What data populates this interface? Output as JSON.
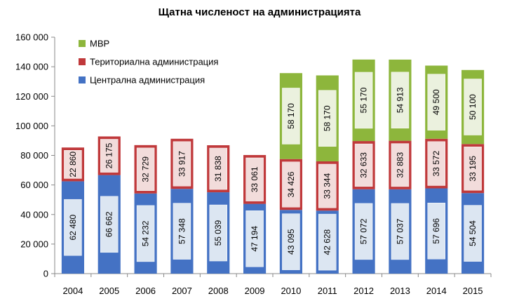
{
  "chart_data": {
    "type": "bar",
    "stacked": true,
    "title": "Щатна численост на администрацията",
    "xlabel": "",
    "ylabel": "",
    "categories": [
      "2004",
      "2005",
      "2006",
      "2007",
      "2008",
      "2009",
      "2010",
      "2011",
      "2012",
      "2013",
      "2014",
      "2015"
    ],
    "ylim": [
      0,
      160000
    ],
    "y_ticks": [
      0,
      20000,
      40000,
      60000,
      80000,
      100000,
      120000,
      140000,
      160000
    ],
    "y_tick_labels": [
      "0",
      "20 000",
      "40 000",
      "60 000",
      "80 000",
      "100 000",
      "120 000",
      "140 000",
      "160 000"
    ],
    "grid": false,
    "legend_position": "top-left",
    "series": [
      {
        "name": "Централна администрация",
        "color": "#4472C4",
        "label_bg": "#DCE6F2",
        "values": [
          62480,
          66662,
          54232,
          57348,
          55039,
          47194,
          43095,
          42628,
          57072,
          57037,
          57696,
          54504
        ],
        "labels": [
          "62 480",
          "66 662",
          "54 232",
          "57 348",
          "55 039",
          "47 194",
          "43 095",
          "42 628",
          "57 072",
          "57 037",
          "57 696",
          "54 504"
        ]
      },
      {
        "name": "Териториална администрация",
        "color": "#C0393B",
        "label_bg": "#F2DCDB",
        "values": [
          22860,
          26175,
          32729,
          33917,
          31838,
          33061,
          34426,
          33344,
          32633,
          32883,
          33572,
          33195
        ],
        "labels": [
          "22 860",
          "26 175",
          "32 729",
          "33 917",
          "31 838",
          "33 061",
          "34 426",
          "33 344",
          "32 633",
          "32 883",
          "33 572",
          "33 195"
        ]
      },
      {
        "name": "МВР",
        "color": "#8DB63C",
        "label_bg": "#EBF1DE",
        "values": [
          null,
          null,
          null,
          null,
          null,
          null,
          58170,
          58170,
          55170,
          54913,
          49500,
          50100
        ],
        "labels": [
          "",
          "",
          "",
          "",
          "",
          "",
          "58 170",
          "58 170",
          "55 170",
          "54 913",
          "49 500",
          "50 100"
        ]
      }
    ]
  }
}
